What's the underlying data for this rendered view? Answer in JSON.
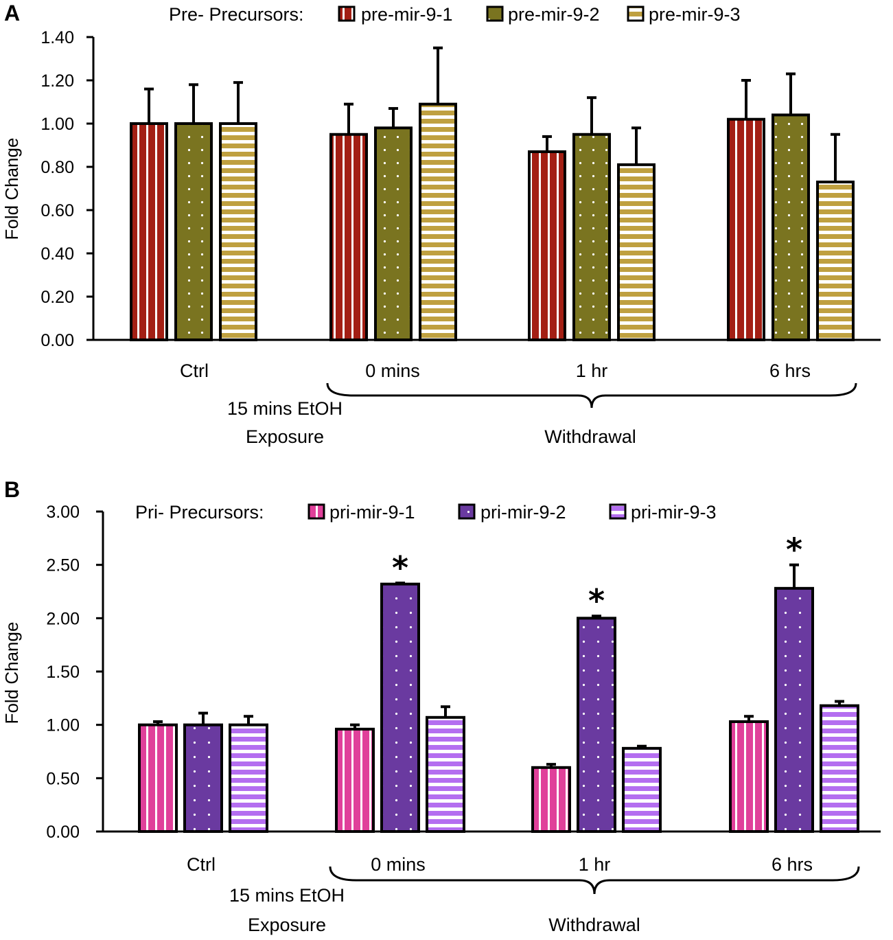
{
  "chart_data": [
    {
      "panel": "A",
      "type": "bar",
      "ylabel": "Fold Change",
      "ylim": [
        0,
        1.4
      ],
      "ytick_labels": [
        "0.00",
        "0.20",
        "0.40",
        "0.60",
        "0.80",
        "1.00",
        "1.20",
        "1.40"
      ],
      "legend_title": "Pre- Precursors:",
      "categories": [
        "Ctrl",
        "0 mins",
        "1 hr",
        "6 hrs"
      ],
      "group_label_left": [
        "15 mins EtOH",
        "Exposure"
      ],
      "group_label_right": "Withdrawal",
      "series": [
        {
          "name": "pre-mir-9-1",
          "pattern": "vstripe",
          "color": "#a31f14",
          "stripe_color": "#ffffff",
          "values": [
            1.0,
            0.95,
            0.87,
            1.02
          ],
          "errors": [
            0.16,
            0.14,
            0.07,
            0.18
          ],
          "sig": [
            false,
            false,
            false,
            false
          ]
        },
        {
          "name": "pre-mir-9-2",
          "pattern": "dots",
          "color": "#7a7420",
          "stripe_color": "#ffffff",
          "values": [
            1.0,
            0.98,
            0.95,
            1.04
          ],
          "errors": [
            0.18,
            0.09,
            0.17,
            0.19
          ],
          "sig": [
            false,
            false,
            false,
            false
          ]
        },
        {
          "name": "pre-mir-9-3",
          "pattern": "hstripe",
          "color": "#bfa040",
          "stripe_color": "#ffffff",
          "values": [
            1.0,
            1.09,
            0.81,
            0.73
          ],
          "errors": [
            0.19,
            0.26,
            0.17,
            0.22
          ],
          "sig": [
            false,
            false,
            false,
            false
          ]
        }
      ]
    },
    {
      "panel": "B",
      "type": "bar",
      "ylabel": "Fold Change",
      "ylim": [
        0,
        3.0
      ],
      "ytick_labels": [
        "0.00",
        "0.50",
        "1.00",
        "1.50",
        "2.00",
        "2.50",
        "3.00"
      ],
      "legend_title": "Pri- Precursors:",
      "categories": [
        "Ctrl",
        "0 mins",
        "1 hr",
        "6 hrs"
      ],
      "group_label_left": [
        "15 mins EtOH",
        "Exposure"
      ],
      "group_label_right": "Withdrawal",
      "sig_marker": "*",
      "series": [
        {
          "name": "pri-mir-9-1",
          "pattern": "vstripe",
          "color": "#e0409a",
          "stripe_color": "#ffffff",
          "values": [
            1.0,
            0.96,
            0.6,
            1.03
          ],
          "errors": [
            0.03,
            0.04,
            0.03,
            0.05
          ],
          "sig": [
            false,
            false,
            false,
            false
          ]
        },
        {
          "name": "pri-mir-9-2",
          "pattern": "dots",
          "color": "#6a3aa0",
          "stripe_color": "#ffffff",
          "values": [
            1.0,
            2.32,
            2.0,
            2.28
          ],
          "errors": [
            0.11,
            0.01,
            0.02,
            0.22
          ],
          "sig": [
            false,
            true,
            true,
            true
          ]
        },
        {
          "name": "pri-mir-9-3",
          "pattern": "hstripe",
          "color": "#b46ef0",
          "stripe_color": "#ffffff",
          "values": [
            1.0,
            1.07,
            0.78,
            1.18
          ],
          "errors": [
            0.08,
            0.1,
            0.02,
            0.04
          ],
          "sig": [
            false,
            false,
            false,
            false
          ]
        }
      ]
    }
  ]
}
